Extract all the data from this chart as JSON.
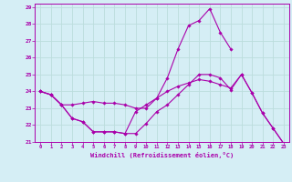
{
  "xlabel": "Windchill (Refroidissement éolien,°C)",
  "xlim": [
    -0.5,
    23.5
  ],
  "ylim": [
    21,
    29.2
  ],
  "yticks": [
    21,
    22,
    23,
    24,
    25,
    26,
    27,
    28,
    29
  ],
  "xticks": [
    0,
    1,
    2,
    3,
    4,
    5,
    6,
    7,
    8,
    9,
    10,
    11,
    12,
    13,
    14,
    15,
    16,
    17,
    18,
    19,
    20,
    21,
    22,
    23
  ],
  "bg_color": "#d5eef5",
  "line_color": "#aa00aa",
  "grid_color": "#bbdddd",
  "lines": [
    {
      "x": [
        0,
        1,
        2,
        3,
        4,
        5,
        6,
        7,
        8,
        9,
        10,
        11,
        12,
        13,
        14,
        15,
        16,
        17,
        18,
        19,
        20,
        21,
        22,
        23
      ],
      "y": [
        24.0,
        23.8,
        23.2,
        22.4,
        22.2,
        21.6,
        21.6,
        21.6,
        21.5,
        22.8,
        23.2,
        23.6,
        24.8,
        26.5,
        27.9,
        28.2,
        28.9,
        27.5,
        26.5,
        null,
        null,
        null,
        null,
        null
      ]
    },
    {
      "x": [
        0,
        1,
        2,
        3,
        4,
        5,
        6,
        7,
        8,
        9,
        10,
        11,
        12,
        13,
        14,
        15,
        16,
        17,
        18,
        19,
        20,
        21,
        22,
        23
      ],
      "y": [
        24.0,
        23.8,
        23.2,
        22.4,
        22.2,
        21.6,
        21.6,
        21.6,
        21.5,
        21.5,
        22.1,
        22.8,
        23.2,
        23.8,
        24.4,
        25.0,
        25.0,
        24.8,
        24.1,
        25.0,
        23.9,
        22.7,
        21.8,
        20.9
      ]
    },
    {
      "x": [
        0,
        1,
        2,
        3,
        4,
        5,
        6,
        7,
        8,
        9,
        10,
        11,
        12,
        13,
        14,
        15,
        16,
        17,
        18,
        19,
        20,
        21,
        22,
        23
      ],
      "y": [
        24.0,
        23.8,
        23.2,
        23.2,
        23.3,
        23.4,
        23.3,
        23.3,
        23.2,
        23.0,
        23.0,
        23.6,
        24.0,
        24.3,
        24.5,
        24.7,
        24.6,
        24.4,
        24.2,
        25.0,
        23.9,
        22.7,
        21.8,
        20.9
      ]
    }
  ]
}
